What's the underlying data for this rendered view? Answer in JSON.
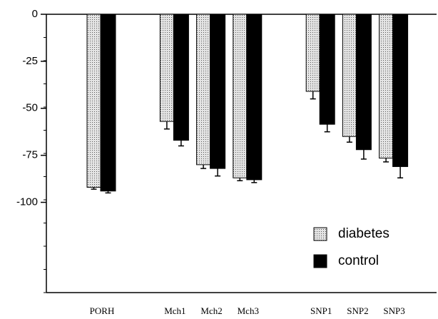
{
  "chart_data": {
    "type": "bar",
    "categories": [
      "PORH",
      "Mch1",
      "Mch2",
      "Mch3",
      "SNP1",
      "SNP2",
      "SNP3"
    ],
    "series": [
      {
        "name": "diabetes",
        "color": "#c8c8c8",
        "values": [
          -92,
          -57,
          -80,
          -87,
          -41,
          -65,
          -76.5
        ],
        "errors": [
          1,
          4,
          2,
          1.5,
          4,
          3,
          2
        ]
      },
      {
        "name": "control",
        "color": "#000000",
        "values": [
          -94,
          -67,
          -82,
          -88,
          -58.5,
          -72,
          -81
        ],
        "errors": [
          1,
          3,
          4,
          1.5,
          4,
          5,
          6
        ]
      }
    ],
    "ylim": [
      -148,
      0
    ],
    "yticks": [
      0,
      -25,
      -50,
      -75,
      -100
    ]
  }
}
